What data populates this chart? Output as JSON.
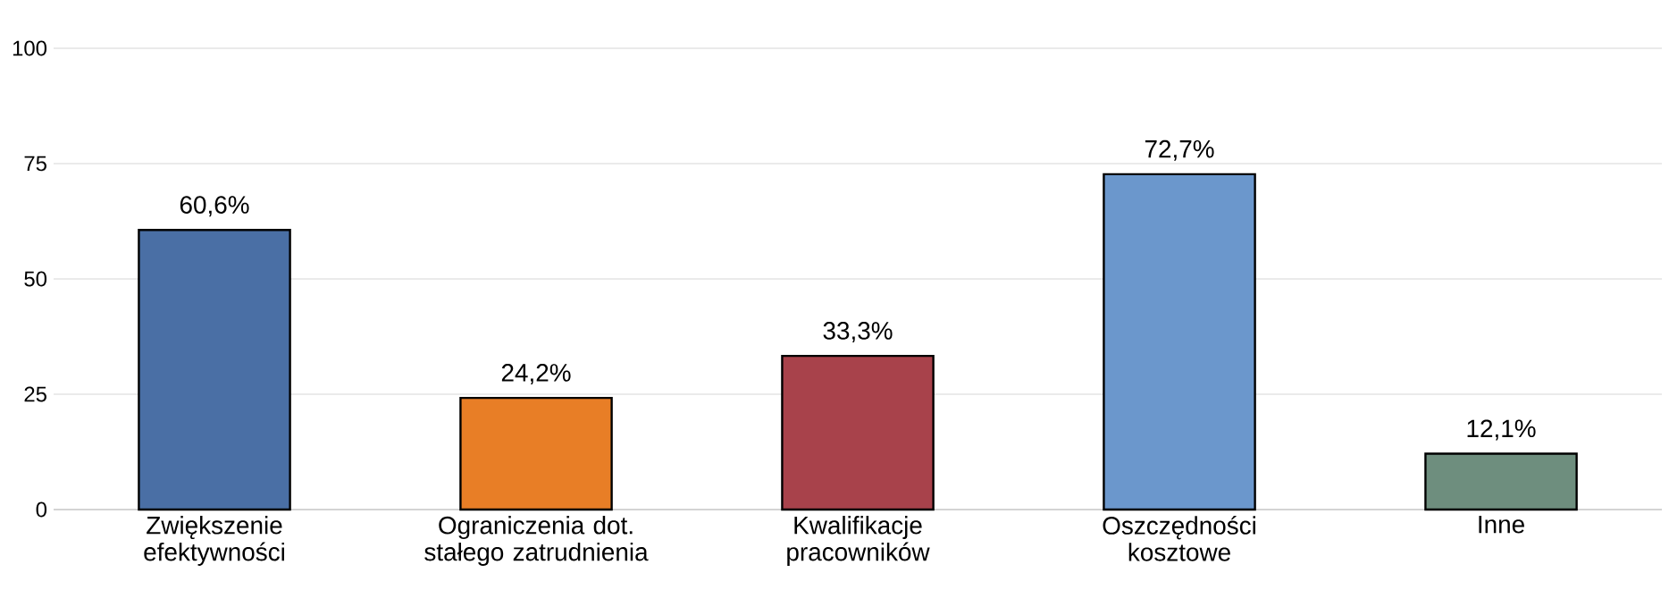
{
  "chart_data": {
    "type": "bar",
    "categories": [
      "Zwiększenie efektywności",
      "Ograniczenia dot. stałego zatrudnienia",
      "Kwalifikacje pracowników",
      "Oszczędności kosztowe",
      "Inne"
    ],
    "values": [
      60.6,
      24.2,
      33.3,
      72.7,
      12.1
    ],
    "colors": [
      "#4a6fa5",
      "#e87e26",
      "#a8424b",
      "#6b97cc",
      "#6e8e7e"
    ],
    "value_labels": [
      "60,6%",
      "24,2%",
      "33,3%",
      "72,7%",
      "12,1%"
    ],
    "ylim": [
      0,
      100
    ],
    "yticks": [
      0,
      25,
      50,
      75,
      100
    ],
    "grid": "y"
  }
}
